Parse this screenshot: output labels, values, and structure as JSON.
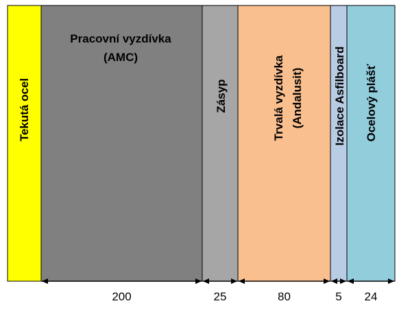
{
  "layers": [
    {
      "id": "tekuta-ocel",
      "label_lines": [
        "Tekutá ocel"
      ],
      "color": "#ffff00",
      "thickness": ""
    },
    {
      "id": "pracovni-vyzdivka",
      "label_lines": [
        "Pracovní vyzdívka",
        "(AMC)"
      ],
      "color": "#808080",
      "thickness": "200"
    },
    {
      "id": "zasyp",
      "label_lines": [
        "Zásyp"
      ],
      "color": "#a6a6a6",
      "thickness": "25"
    },
    {
      "id": "trvala-vyzdivka",
      "label_lines": [
        "Trvalá vyzdívka",
        "(Andalusit)"
      ],
      "color": "#f9bf8f",
      "thickness": "80"
    },
    {
      "id": "izolace-asfilboard",
      "label_lines": [
        "Izolace Asfilboard"
      ],
      "color": "#b8cce4",
      "thickness": "5"
    },
    {
      "id": "ocelovy-plast",
      "label_lines": [
        "Ocelový plášť"
      ],
      "color": "#92cddc",
      "thickness": "24"
    }
  ]
}
